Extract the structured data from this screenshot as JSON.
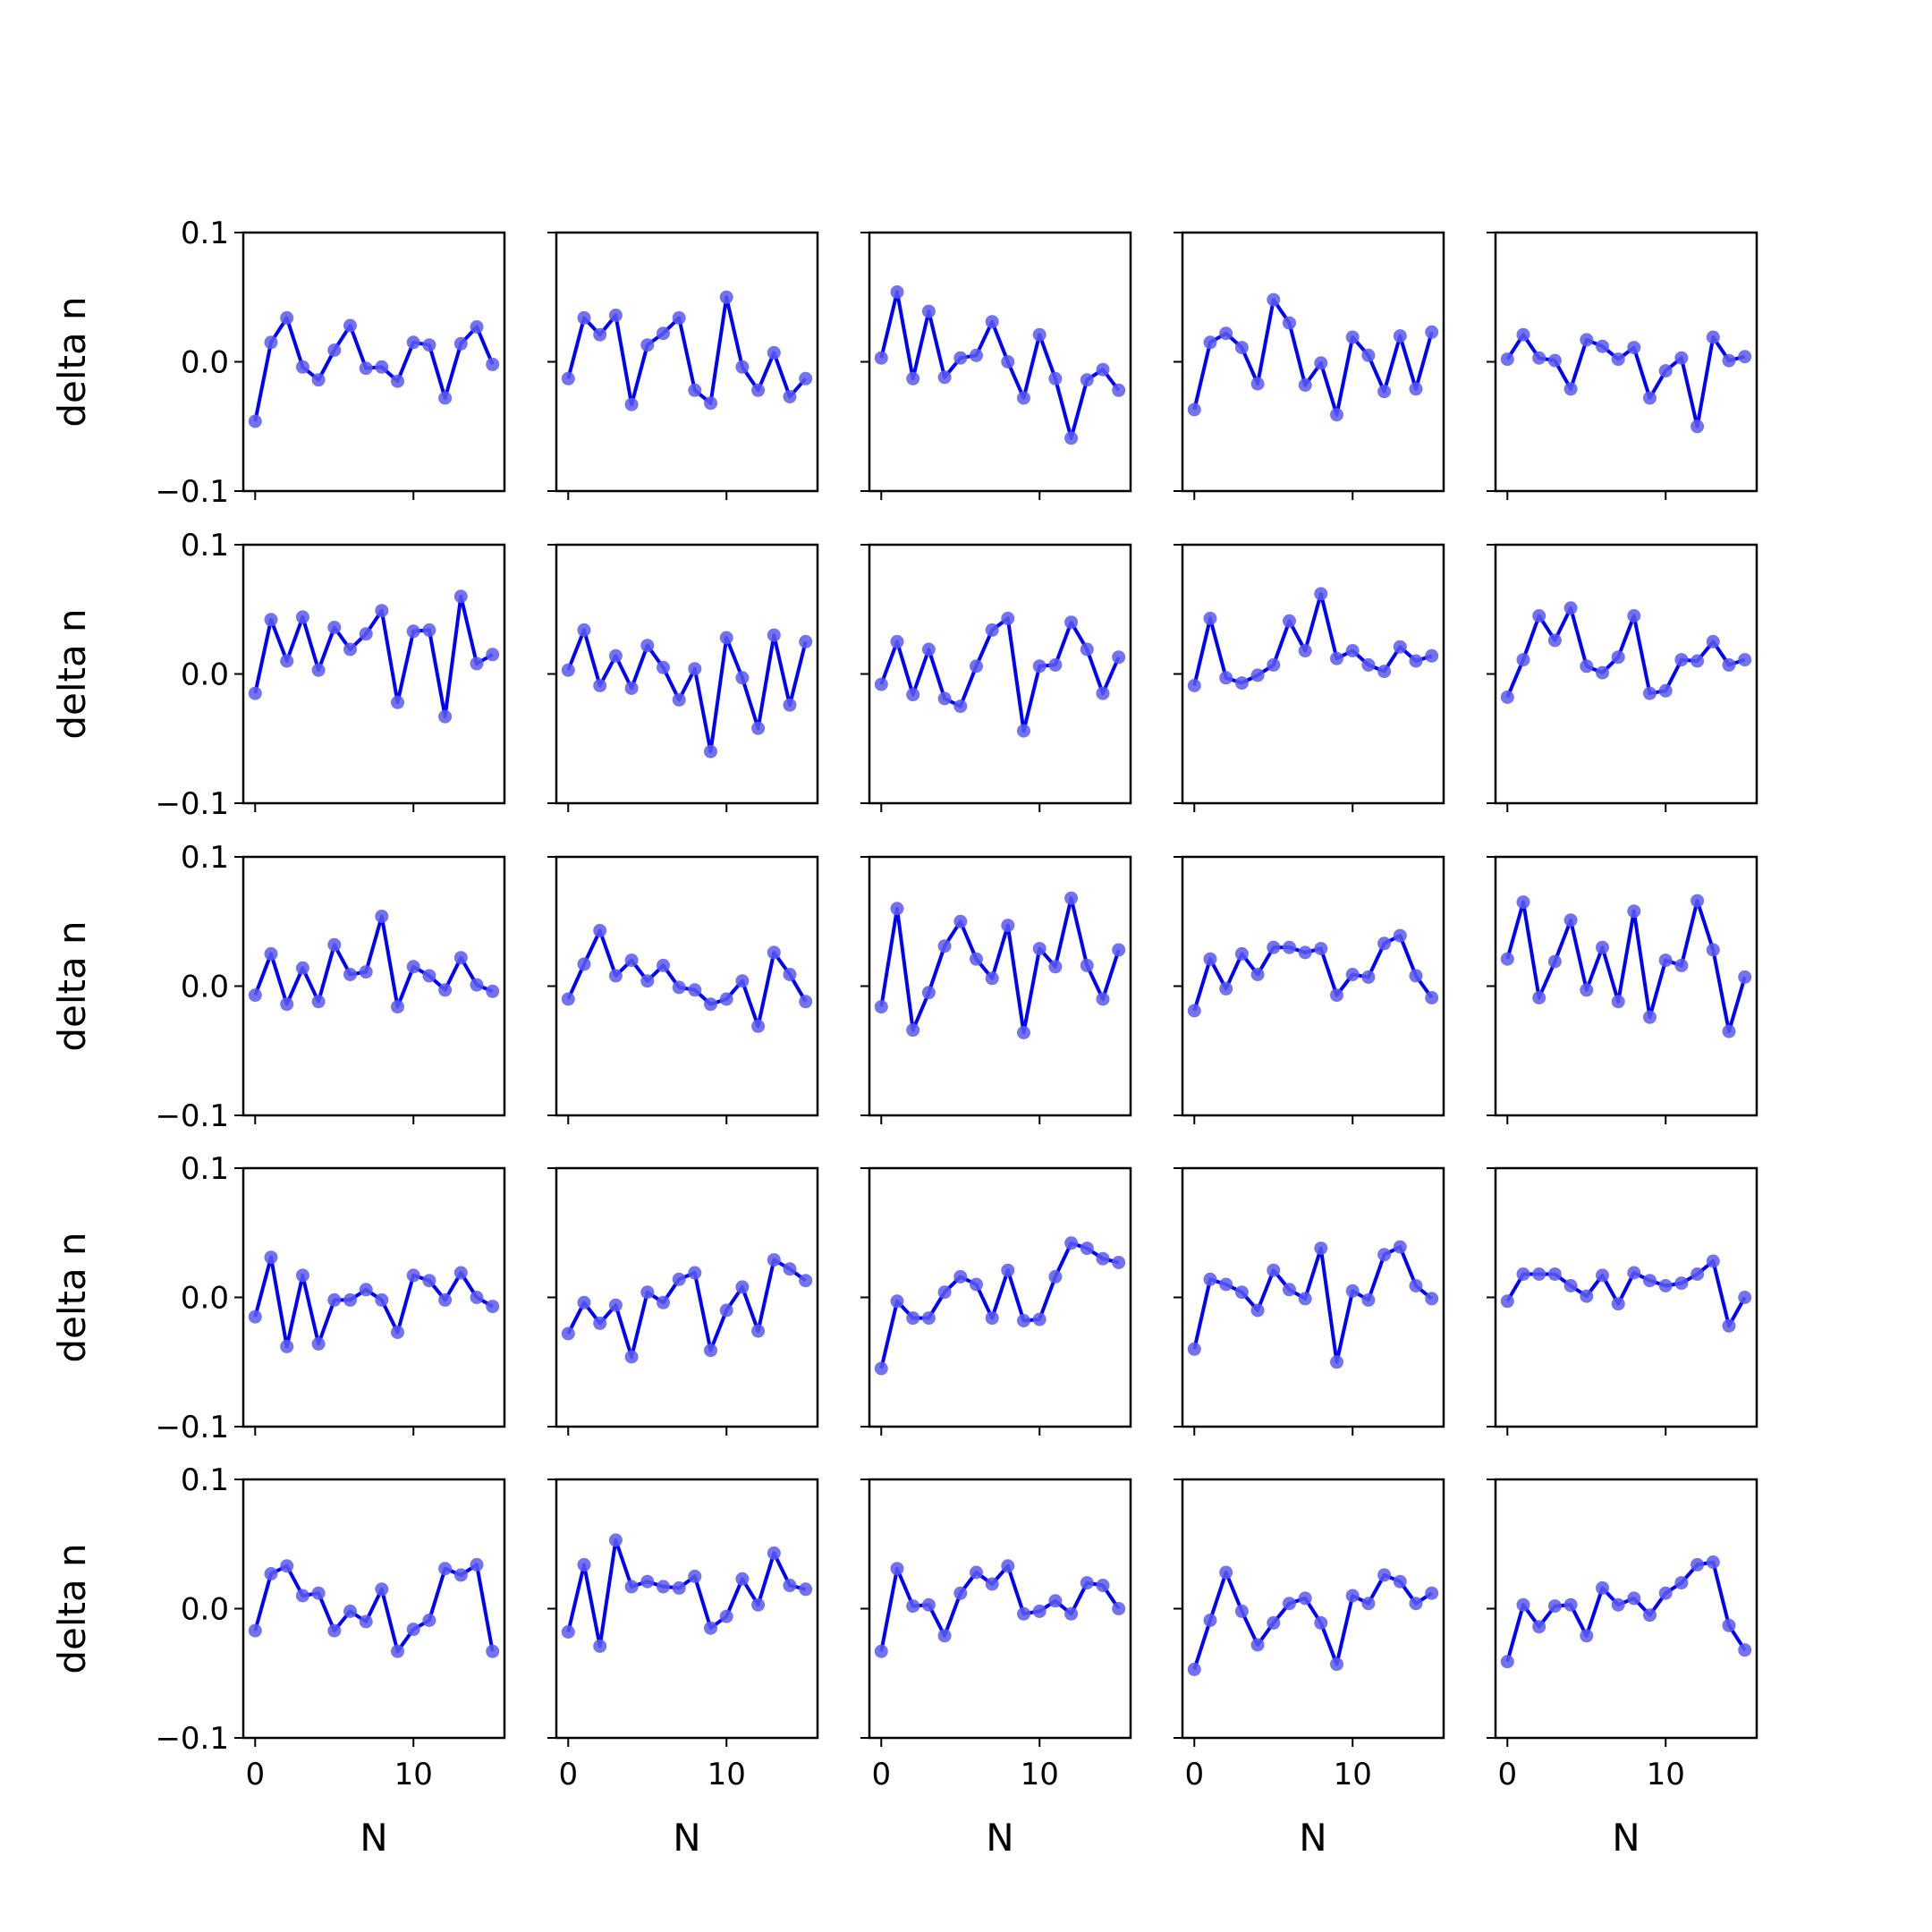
{
  "chart_data": {
    "type": "line",
    "grid": {
      "rows": 5,
      "cols": 5
    },
    "shared_x_axis": true,
    "shared_y_axis": true,
    "xlabel": "N",
    "ylabel": "delta n",
    "xlim": [
      -0.75,
      15.75
    ],
    "ylim": [
      -0.1,
      0.1
    ],
    "x_ticks": [
      0,
      10
    ],
    "x_tick_labels": [
      "0",
      "10"
    ],
    "y_ticks": [
      0.1,
      0.0,
      -0.1
    ],
    "y_tick_labels": [
      "0.1",
      "0.0",
      "−0.1"
    ],
    "grid_lines": false,
    "line_color": "#0000ff",
    "marker_color": "#5a5af0",
    "x": [
      0,
      1,
      2,
      3,
      4,
      5,
      6,
      7,
      8,
      9,
      10,
      11,
      12,
      13,
      14,
      15
    ],
    "panels": [
      {
        "row": 1,
        "col": 1,
        "values": [
          -0.046,
          0.015,
          0.034,
          -0.004,
          -0.014,
          0.009,
          0.028,
          -0.005,
          -0.004,
          -0.015,
          0.015,
          0.013,
          -0.028,
          0.014,
          0.027,
          -0.002
        ]
      },
      {
        "row": 1,
        "col": 2,
        "values": [
          -0.013,
          0.034,
          0.021,
          0.036,
          -0.033,
          0.013,
          0.022,
          0.034,
          -0.022,
          -0.032,
          0.05,
          -0.004,
          -0.022,
          0.007,
          -0.027,
          -0.013
        ]
      },
      {
        "row": 1,
        "col": 3,
        "values": [
          0.003,
          0.054,
          -0.013,
          0.039,
          -0.012,
          0.003,
          0.005,
          0.031,
          0.0,
          -0.028,
          0.021,
          -0.013,
          -0.059,
          -0.014,
          -0.006,
          -0.022
        ]
      },
      {
        "row": 1,
        "col": 4,
        "values": [
          -0.037,
          0.015,
          0.022,
          0.011,
          -0.017,
          0.048,
          0.03,
          -0.018,
          -0.001,
          -0.041,
          0.019,
          0.005,
          -0.023,
          0.02,
          -0.021,
          0.023
        ]
      },
      {
        "row": 1,
        "col": 5,
        "values": [
          0.002,
          0.021,
          0.003,
          0.001,
          -0.021,
          0.017,
          0.012,
          0.002,
          0.011,
          -0.028,
          -0.007,
          0.003,
          -0.05,
          0.019,
          0.001,
          0.004
        ]
      },
      {
        "row": 2,
        "col": 1,
        "values": [
          -0.015,
          0.042,
          0.01,
          0.044,
          0.003,
          0.036,
          0.019,
          0.031,
          0.049,
          -0.022,
          0.033,
          0.034,
          -0.033,
          0.06,
          0.008,
          0.015
        ]
      },
      {
        "row": 2,
        "col": 2,
        "values": [
          0.003,
          0.034,
          -0.009,
          0.014,
          -0.011,
          0.022,
          0.005,
          -0.02,
          0.004,
          -0.06,
          0.028,
          -0.003,
          -0.042,
          0.03,
          -0.024,
          0.025
        ]
      },
      {
        "row": 2,
        "col": 3,
        "values": [
          -0.008,
          0.025,
          -0.016,
          0.019,
          -0.019,
          -0.025,
          0.006,
          0.034,
          0.043,
          -0.044,
          0.006,
          0.007,
          0.04,
          0.019,
          -0.015,
          0.013
        ]
      },
      {
        "row": 2,
        "col": 4,
        "values": [
          -0.009,
          0.043,
          -0.003,
          -0.007,
          -0.001,
          0.007,
          0.041,
          0.018,
          0.062,
          0.012,
          0.018,
          0.007,
          0.002,
          0.021,
          0.01,
          0.014
        ]
      },
      {
        "row": 2,
        "col": 5,
        "values": [
          -0.018,
          0.011,
          0.045,
          0.026,
          0.051,
          0.006,
          0.001,
          0.013,
          0.045,
          -0.015,
          -0.013,
          0.011,
          0.01,
          0.025,
          0.007,
          0.011
        ]
      },
      {
        "row": 3,
        "col": 1,
        "values": [
          -0.007,
          0.025,
          -0.014,
          0.014,
          -0.012,
          0.032,
          0.009,
          0.011,
          0.054,
          -0.016,
          0.015,
          0.008,
          -0.003,
          0.022,
          0.001,
          -0.004
        ]
      },
      {
        "row": 3,
        "col": 2,
        "values": [
          -0.01,
          0.017,
          0.043,
          0.008,
          0.02,
          0.004,
          0.016,
          -0.001,
          -0.003,
          -0.014,
          -0.01,
          0.004,
          -0.031,
          0.026,
          0.009,
          -0.012
        ]
      },
      {
        "row": 3,
        "col": 3,
        "values": [
          -0.016,
          0.06,
          -0.034,
          -0.005,
          0.031,
          0.05,
          0.021,
          0.006,
          0.047,
          -0.036,
          0.029,
          0.015,
          0.068,
          0.016,
          -0.01,
          0.028
        ]
      },
      {
        "row": 3,
        "col": 4,
        "values": [
          -0.019,
          0.021,
          -0.002,
          0.025,
          0.009,
          0.03,
          0.03,
          0.026,
          0.029,
          -0.007,
          0.009,
          0.007,
          0.033,
          0.039,
          0.008,
          -0.009
        ]
      },
      {
        "row": 3,
        "col": 5,
        "values": [
          0.021,
          0.065,
          -0.009,
          0.019,
          0.051,
          -0.003,
          0.03,
          -0.012,
          0.058,
          -0.024,
          0.02,
          0.016,
          0.066,
          0.028,
          -0.035,
          0.007
        ]
      },
      {
        "row": 4,
        "col": 1,
        "values": [
          -0.015,
          0.031,
          -0.038,
          0.017,
          -0.036,
          -0.002,
          -0.002,
          0.006,
          -0.002,
          -0.027,
          0.017,
          0.013,
          -0.002,
          0.019,
          0.0,
          -0.007
        ]
      },
      {
        "row": 4,
        "col": 2,
        "values": [
          -0.028,
          -0.004,
          -0.02,
          -0.006,
          -0.046,
          0.004,
          -0.004,
          0.014,
          0.019,
          -0.041,
          -0.01,
          0.008,
          -0.026,
          0.029,
          0.022,
          0.013
        ]
      },
      {
        "row": 4,
        "col": 3,
        "values": [
          -0.055,
          -0.003,
          -0.016,
          -0.016,
          0.004,
          0.016,
          0.01,
          -0.016,
          0.021,
          -0.018,
          -0.017,
          0.016,
          0.042,
          0.038,
          0.03,
          0.027
        ]
      },
      {
        "row": 4,
        "col": 4,
        "values": [
          -0.04,
          0.014,
          0.01,
          0.004,
          -0.01,
          0.021,
          0.006,
          -0.001,
          0.038,
          -0.05,
          0.005,
          -0.002,
          0.033,
          0.039,
          0.009,
          -0.001
        ]
      },
      {
        "row": 4,
        "col": 5,
        "values": [
          -0.003,
          0.018,
          0.018,
          0.018,
          0.009,
          0.001,
          0.017,
          -0.005,
          0.019,
          0.013,
          0.009,
          0.011,
          0.018,
          0.028,
          -0.022,
          0.0
        ]
      },
      {
        "row": 5,
        "col": 1,
        "values": [
          -0.017,
          0.027,
          0.033,
          0.01,
          0.012,
          -0.017,
          -0.002,
          -0.01,
          0.015,
          -0.033,
          -0.016,
          -0.009,
          0.031,
          0.026,
          0.034,
          -0.033
        ]
      },
      {
        "row": 5,
        "col": 2,
        "values": [
          -0.018,
          0.034,
          -0.029,
          0.053,
          0.017,
          0.021,
          0.017,
          0.016,
          0.025,
          -0.015,
          -0.006,
          0.023,
          0.003,
          0.043,
          0.018,
          0.015
        ]
      },
      {
        "row": 5,
        "col": 3,
        "values": [
          -0.033,
          0.031,
          0.002,
          0.003,
          -0.021,
          0.012,
          0.028,
          0.019,
          0.033,
          -0.004,
          -0.002,
          0.006,
          -0.004,
          0.02,
          0.018,
          0.0
        ]
      },
      {
        "row": 5,
        "col": 4,
        "values": [
          -0.047,
          -0.009,
          0.028,
          -0.002,
          -0.028,
          -0.011,
          0.004,
          0.008,
          -0.011,
          -0.043,
          0.01,
          0.004,
          0.026,
          0.021,
          0.004,
          0.012
        ]
      },
      {
        "row": 5,
        "col": 5,
        "values": [
          -0.041,
          0.003,
          -0.014,
          0.002,
          0.003,
          -0.021,
          0.016,
          0.003,
          0.008,
          -0.005,
          0.012,
          0.02,
          0.034,
          0.036,
          -0.013,
          -0.032
        ]
      }
    ]
  }
}
